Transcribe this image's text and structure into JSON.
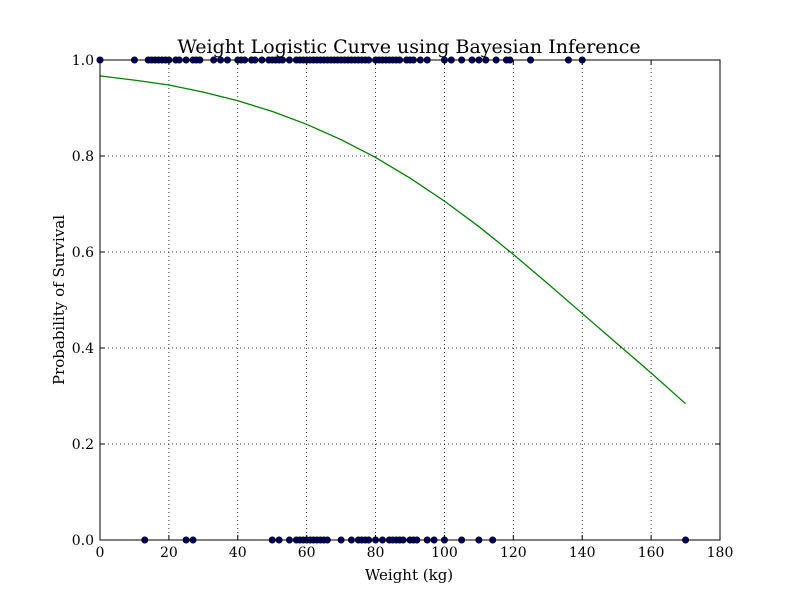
{
  "chart_data": {
    "type": "scatter",
    "title": "Weight Logistic Curve using Bayesian Inference",
    "xlabel": "Weight (kg)",
    "ylabel": "Probability of Survival",
    "xlim": [
      0,
      180
    ],
    "ylim": [
      0.0,
      1.0
    ],
    "xticks": [
      0,
      20,
      40,
      60,
      80,
      100,
      120,
      140,
      160,
      180
    ],
    "yticks": [
      0.0,
      0.2,
      0.4,
      0.6,
      0.8,
      1.0
    ],
    "xtick_labels": [
      "0",
      "20",
      "40",
      "60",
      "80",
      "100",
      "120",
      "140",
      "160",
      "180"
    ],
    "ytick_labels": [
      "0.0",
      "0.2",
      "0.4",
      "0.6",
      "0.8",
      "1.0"
    ],
    "grid": true,
    "grid_style": "dotted",
    "series": [
      {
        "type": "scatter",
        "color": "#000080",
        "points": [
          [
            0,
            1
          ],
          [
            10,
            1
          ],
          [
            14,
            1
          ],
          [
            15,
            1
          ],
          [
            16,
            1
          ],
          [
            17,
            1
          ],
          [
            18,
            1
          ],
          [
            19,
            1
          ],
          [
            20,
            1
          ],
          [
            22,
            1
          ],
          [
            23,
            1
          ],
          [
            25,
            1
          ],
          [
            27,
            1
          ],
          [
            28,
            1
          ],
          [
            29,
            1
          ],
          [
            33,
            1
          ],
          [
            35,
            1
          ],
          [
            37,
            1
          ],
          [
            40,
            1
          ],
          [
            41,
            1
          ],
          [
            42,
            1
          ],
          [
            44,
            1
          ],
          [
            45,
            1
          ],
          [
            47,
            1
          ],
          [
            49,
            1
          ],
          [
            50,
            1
          ],
          [
            51,
            1
          ],
          [
            52,
            1
          ],
          [
            53,
            1
          ],
          [
            55,
            1
          ],
          [
            57,
            1
          ],
          [
            58,
            1
          ],
          [
            59,
            1
          ],
          [
            60,
            1
          ],
          [
            61,
            1
          ],
          [
            62,
            1
          ],
          [
            63,
            1
          ],
          [
            64,
            1
          ],
          [
            65,
            1
          ],
          [
            66,
            1
          ],
          [
            67,
            1
          ],
          [
            68,
            1
          ],
          [
            69,
            1
          ],
          [
            70,
            1
          ],
          [
            71,
            1
          ],
          [
            72,
            1
          ],
          [
            73,
            1
          ],
          [
            74,
            1
          ],
          [
            75,
            1
          ],
          [
            76,
            1
          ],
          [
            77,
            1
          ],
          [
            78,
            1
          ],
          [
            80,
            1
          ],
          [
            81,
            1
          ],
          [
            82,
            1
          ],
          [
            83,
            1
          ],
          [
            84,
            1
          ],
          [
            85,
            1
          ],
          [
            86,
            1
          ],
          [
            87,
            1
          ],
          [
            89,
            1
          ],
          [
            90,
            1
          ],
          [
            91,
            1
          ],
          [
            93,
            1
          ],
          [
            95,
            1
          ],
          [
            100,
            1
          ],
          [
            102,
            1
          ],
          [
            105,
            1
          ],
          [
            108,
            1
          ],
          [
            110,
            1
          ],
          [
            112,
            1
          ],
          [
            115,
            1
          ],
          [
            118,
            1
          ],
          [
            119,
            1
          ],
          [
            125,
            1
          ],
          [
            136,
            1
          ],
          [
            140,
            1
          ],
          [
            13,
            0
          ],
          [
            25,
            0
          ],
          [
            27,
            0
          ],
          [
            50,
            0
          ],
          [
            52,
            0
          ],
          [
            55,
            0
          ],
          [
            57,
            0
          ],
          [
            58,
            0
          ],
          [
            59,
            0
          ],
          [
            60,
            0
          ],
          [
            61,
            0
          ],
          [
            62,
            0
          ],
          [
            63,
            0
          ],
          [
            64,
            0
          ],
          [
            65,
            0
          ],
          [
            66,
            0
          ],
          [
            70,
            0
          ],
          [
            73,
            0
          ],
          [
            75,
            0
          ],
          [
            76,
            0
          ],
          [
            77,
            0
          ],
          [
            78,
            0
          ],
          [
            80,
            0
          ],
          [
            82,
            0
          ],
          [
            84,
            0
          ],
          [
            85,
            0
          ],
          [
            86,
            0
          ],
          [
            87,
            0
          ],
          [
            88,
            0
          ],
          [
            90,
            0
          ],
          [
            91,
            0
          ],
          [
            92,
            0
          ],
          [
            95,
            0
          ],
          [
            97,
            0
          ],
          [
            100,
            0
          ],
          [
            105,
            0
          ],
          [
            110,
            0
          ],
          [
            114,
            0
          ],
          [
            170,
            0
          ]
        ]
      },
      {
        "type": "line",
        "color": "#008000",
        "x": [
          0,
          10,
          20,
          30,
          40,
          50,
          60,
          70,
          80,
          90,
          100,
          110,
          120,
          130,
          140,
          150,
          160,
          170
        ],
        "y": [
          0.967,
          0.958,
          0.948,
          0.933,
          0.915,
          0.893,
          0.866,
          0.834,
          0.797,
          0.754,
          0.706,
          0.653,
          0.595,
          0.534,
          0.472,
          0.41,
          0.348,
          0.284
        ]
      }
    ]
  }
}
